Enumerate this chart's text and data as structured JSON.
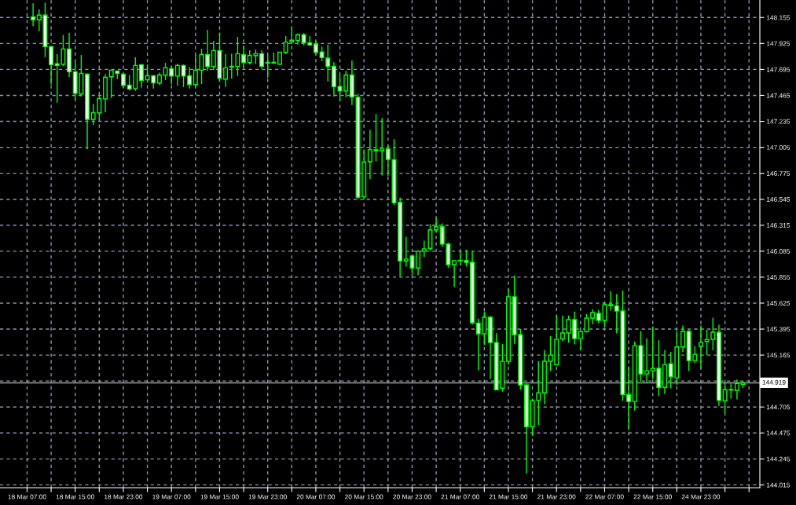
{
  "chart_data": {
    "type": "candlestick",
    "color": "#00ff00",
    "colors": [
      null,
      "#ffffff",
      "#000000",
      "#ffffff",
      "#ffffff",
      "#ffffff",
      "#000000",
      "#ffffff",
      "#ffffff",
      "#000000",
      "#ffffff",
      "#000000",
      "#000000",
      "#000000",
      "#000000",
      "#ffffff",
      "#ffffff",
      "#ffffff",
      "#000000",
      "#ffffff",
      "#000000",
      "#ffffff",
      "#000000",
      "#000000",
      "#ffffff",
      "#000000",
      "#ffffff",
      "#ffffff",
      "#000000",
      "#000000",
      "#ffffff",
      "#000000",
      "#ffffff",
      "#000000",
      "#000000",
      "#000000",
      "#ffffff",
      "#000000",
      "#000000",
      "#ffffff",
      "#ffffff",
      "#000000",
      "#000000",
      "#000000",
      "#000000",
      "#000000",
      "#ffffff",
      "#ffffff",
      "#ffffff",
      "#ffffff",
      "#ffffff",
      "#ffffff",
      "#ffffff",
      "#000000",
      "#ffffff",
      "#ffffff",
      "#000000",
      "#000000",
      "#ffffff",
      "#000000",
      "#ffffff",
      "#ffffff",
      "#ffffff",
      "#000000",
      "#ffffff",
      "#000000",
      "#000000",
      "#000000",
      "#000000",
      "#ffffff",
      "#ffffff",
      "#000000",
      "#ffffff",
      "#ffffff",
      "#ffffff",
      "#ffffff",
      "#000000",
      "#ffffff",
      "#ffffff",
      "#000000",
      "#000000",
      "#ffffff",
      "#ffffff",
      "#ffffff",
      "#000000",
      "#000000",
      "#000000",
      "#000000",
      "#000000",
      "#000000",
      "#000000",
      "#ffffff",
      "#000000",
      "#000000",
      "#000000",
      "#ffffff",
      "#000000",
      "#ffffff",
      "#ffffff",
      "#ffffff",
      "#ffffff",
      "#000000",
      "#ffffff",
      "#000000",
      "#000000",
      "#ffffff",
      "#000000",
      "#ffffff",
      "#000000",
      "#000000",
      "#ffffff",
      "#000000",
      "#000000",
      "#000000",
      "#000000",
      "#ffffff",
      "#000000",
      "#000000",
      "#000000",
      "#000000"
    ],
    "grid": true,
    "categories": [
      "18 Mar 07:00",
      null,
      null,
      null,
      null,
      null,
      null,
      null,
      "18 Mar 15:00",
      null,
      null,
      null,
      null,
      null,
      null,
      null,
      "18 Mar 23:00",
      null,
      null,
      null,
      null,
      null,
      null,
      null,
      "19 Mar 07:00",
      null,
      null,
      null,
      null,
      null,
      null,
      null,
      "19 Mar 15:00",
      null,
      null,
      null,
      null,
      null,
      null,
      null,
      "19 Mar 23:00",
      null,
      null,
      null,
      null,
      null,
      null,
      null,
      "20 Mar 07:00",
      null,
      null,
      null,
      null,
      null,
      null,
      null,
      "20 Mar 15:00",
      null,
      null,
      null,
      null,
      null,
      null,
      null,
      "20 Mar 23:00",
      null,
      null,
      null,
      null,
      null,
      null,
      null,
      "21 Mar 07:00",
      null,
      null,
      null,
      null,
      null,
      null,
      null,
      "21 Mar 15:00",
      null,
      null,
      null,
      null,
      null,
      null,
      null,
      "21 Mar 23:00",
      null,
      null,
      null,
      null,
      null,
      null,
      null,
      "22 Mar 07:00",
      null,
      null,
      null,
      null,
      null,
      null,
      null,
      "22 Mar 15:00",
      null,
      null,
      null,
      null,
      null,
      null,
      null,
      "24 Mar 23:00",
      null,
      null,
      null,
      null,
      null,
      null,
      null
    ],
    "ohlc": [
      null,
      [
        148.16,
        148.28,
        148.078,
        148.134
      ],
      [
        148.134,
        148.226,
        148.032,
        148.176
      ],
      [
        148.176,
        148.287,
        147.804,
        147.897
      ],
      [
        147.897,
        147.904,
        147.56,
        147.737
      ],
      [
        147.746,
        147.83,
        147.4,
        147.73
      ],
      [
        147.741,
        148.0,
        147.723,
        147.876
      ],
      [
        147.876,
        148.018,
        147.627,
        147.674
      ],
      [
        147.674,
        147.762,
        147.427,
        147.483
      ],
      [
        147.479,
        147.823,
        147.455,
        147.66
      ],
      [
        147.653,
        147.66,
        146.986,
        147.253
      ],
      [
        147.253,
        147.39,
        147.204,
        147.312
      ],
      [
        147.31,
        147.469,
        147.253,
        147.437
      ],
      [
        147.434,
        147.655,
        147.316,
        147.625
      ],
      [
        147.63,
        147.688,
        147.441,
        147.688
      ],
      [
        147.681,
        147.681,
        147.609,
        147.66
      ],
      [
        147.653,
        147.655,
        147.539,
        147.553
      ],
      [
        147.556,
        147.646,
        147.509,
        147.521
      ],
      [
        147.525,
        147.802,
        147.504,
        147.73
      ],
      [
        147.737,
        147.737,
        147.532,
        147.597
      ],
      [
        147.604,
        147.739,
        147.578,
        147.639
      ],
      [
        147.639,
        147.646,
        147.525,
        147.576
      ],
      [
        147.574,
        147.667,
        147.556,
        147.646
      ],
      [
        147.644,
        147.753,
        147.6,
        147.709
      ],
      [
        147.702,
        147.73,
        147.563,
        147.636
      ],
      [
        147.636,
        147.746,
        147.55,
        147.73
      ],
      [
        147.73,
        147.74,
        147.539,
        147.636
      ],
      [
        147.639,
        147.716,
        147.525,
        147.56
      ],
      [
        147.56,
        147.823,
        147.532,
        147.688
      ],
      [
        147.688,
        147.878,
        147.565,
        147.827
      ],
      [
        147.827,
        148.046,
        147.683,
        147.72
      ],
      [
        147.72,
        147.948,
        147.688,
        147.862
      ],
      [
        147.862,
        148.02,
        147.59,
        147.616
      ],
      [
        147.609,
        147.83,
        147.539,
        147.709
      ],
      [
        147.716,
        147.836,
        147.613,
        147.723
      ],
      [
        147.72,
        147.983,
        147.637,
        147.834
      ],
      [
        147.825,
        147.906,
        147.713,
        147.755
      ],
      [
        147.755,
        147.864,
        147.739,
        147.82
      ],
      [
        147.818,
        147.871,
        147.744,
        147.834
      ],
      [
        147.834,
        147.864,
        147.702,
        147.723
      ],
      [
        147.758,
        147.823,
        147.622,
        147.751
      ],
      [
        147.751,
        147.844,
        147.746,
        147.758
      ],
      [
        147.741,
        147.848,
        147.741,
        147.848
      ],
      [
        147.846,
        147.99,
        147.832,
        147.937
      ],
      [
        147.94,
        148.073,
        147.922,
        147.953
      ],
      [
        147.95,
        148.013,
        147.915,
        148.004
      ],
      [
        148.002,
        148.018,
        147.908,
        147.932
      ],
      [
        147.932,
        147.99,
        147.908,
        147.911
      ],
      [
        147.92,
        147.95,
        147.827,
        147.846
      ],
      [
        147.85,
        147.897,
        147.769,
        147.8
      ],
      [
        147.795,
        147.913,
        147.588,
        147.72
      ],
      [
        147.723,
        147.758,
        147.455,
        147.542
      ],
      [
        147.544,
        147.648,
        147.413,
        147.504
      ],
      [
        147.504,
        147.683,
        147.448,
        147.646
      ],
      [
        147.646,
        147.774,
        147.379,
        147.451
      ],
      [
        147.448,
        147.479,
        146.545,
        146.563
      ],
      [
        146.568,
        146.987,
        146.552,
        146.875
      ],
      [
        146.877,
        147.16,
        146.723,
        146.984
      ],
      [
        146.984,
        147.3,
        146.882,
        146.975
      ],
      [
        146.974,
        147.265,
        146.756,
        146.991
      ],
      [
        146.991,
        147.026,
        146.749,
        146.898
      ],
      [
        146.894,
        147.077,
        146.493,
        146.514
      ],
      [
        146.517,
        146.561,
        145.857,
        145.999
      ],
      [
        145.999,
        146.213,
        145.948,
        146.015
      ],
      [
        146.043,
        146.057,
        145.871,
        145.936
      ],
      [
        145.936,
        146.092,
        145.871,
        146.085
      ],
      [
        146.085,
        146.177,
        146.031,
        146.106
      ],
      [
        146.11,
        146.324,
        146.087,
        146.273
      ],
      [
        146.273,
        146.382,
        146.25,
        146.301
      ],
      [
        146.301,
        146.331,
        146.124,
        146.148
      ],
      [
        146.148,
        146.162,
        145.938,
        145.966
      ],
      [
        145.966,
        146.001,
        145.768,
        146.001
      ],
      [
        146.004,
        146.087,
        145.959,
        146.0
      ],
      [
        146.001,
        146.099,
        145.95,
        145.987
      ],
      [
        145.987,
        146.085,
        145.434,
        145.451
      ],
      [
        145.448,
        145.487,
        145.03,
        145.353
      ],
      [
        145.353,
        145.552,
        145.255,
        145.5
      ],
      [
        145.5,
        145.511,
        144.953,
        145.276
      ],
      [
        145.276,
        145.358,
        144.858,
        144.858
      ],
      [
        144.872,
        145.262,
        144.842,
        145.109
      ],
      [
        145.109,
        145.75,
        145.081,
        145.681
      ],
      [
        145.681,
        145.871,
        145.262,
        145.346
      ],
      [
        145.346,
        145.395,
        144.858,
        144.9
      ],
      [
        144.9,
        144.918,
        144.117,
        144.531
      ],
      [
        144.531,
        144.779,
        144.449,
        144.76
      ],
      [
        144.765,
        145.111,
        144.545,
        144.83
      ],
      [
        144.83,
        145.209,
        144.73,
        145.11
      ],
      [
        145.11,
        145.334,
        145.023,
        145.165
      ],
      [
        145.079,
        145.513,
        145.074,
        145.304
      ],
      [
        145.308,
        145.515,
        145.29,
        145.36
      ],
      [
        145.36,
        145.515,
        145.274,
        145.479
      ],
      [
        145.479,
        145.55,
        145.26,
        145.311
      ],
      [
        145.311,
        145.374,
        145.204,
        145.374
      ],
      [
        145.374,
        145.529,
        145.364,
        145.493
      ],
      [
        145.493,
        145.571,
        145.439,
        145.541
      ],
      [
        145.534,
        145.564,
        145.448,
        145.472
      ],
      [
        145.472,
        145.627,
        145.413,
        145.611
      ],
      [
        145.611,
        145.731,
        145.559,
        145.601
      ],
      [
        145.601,
        145.704,
        145.357,
        145.555
      ],
      [
        145.555,
        145.736,
        144.758,
        144.816
      ],
      [
        144.816,
        145.062,
        144.505,
        144.754
      ],
      [
        144.754,
        145.286,
        144.674,
        145.248
      ],
      [
        145.248,
        145.377,
        144.93,
        144.998
      ],
      [
        144.998,
        145.313,
        144.918,
        145.026
      ],
      [
        145.026,
        145.418,
        144.953,
        145.047
      ],
      [
        145.047,
        145.297,
        144.802,
        144.879
      ],
      [
        144.879,
        145.209,
        144.82,
        145.081
      ],
      [
        145.088,
        145.193,
        144.869,
        144.972
      ],
      [
        144.963,
        145.378,
        144.9,
        145.237
      ],
      [
        145.237,
        145.427,
        145.19,
        145.374
      ],
      [
        145.374,
        145.388,
        145.023,
        145.116
      ],
      [
        145.116,
        145.244,
        145.092,
        145.172
      ],
      [
        145.242,
        145.427,
        145.053,
        145.276
      ],
      [
        145.286,
        145.39,
        145.165,
        145.304
      ],
      [
        145.304,
        145.495,
        145.207,
        145.367
      ],
      [
        145.367,
        145.434,
        144.716,
        144.763
      ],
      [
        144.76,
        144.923,
        144.649,
        144.858
      ],
      [
        144.855,
        144.914,
        144.779,
        144.86
      ],
      [
        144.851,
        144.949,
        144.772,
        144.913
      ],
      [
        144.905,
        144.935,
        144.872,
        144.919
      ]
    ],
    "ylim": [
      143.99,
      148.31
    ],
    "yticks": [
      148.155,
      147.925,
      147.695,
      147.465,
      147.235,
      147.005,
      146.775,
      146.545,
      146.315,
      146.085,
      145.855,
      145.625,
      145.395,
      145.165,
      {
        "value": 144.935,
        "label": null
      },
      144.705,
      144.475,
      144.245,
      144.015
    ],
    "ref_lines": [
      {
        "axis": "y",
        "value": 144.919,
        "label": "144.919",
        "color": "#a0a0a0"
      }
    ]
  }
}
